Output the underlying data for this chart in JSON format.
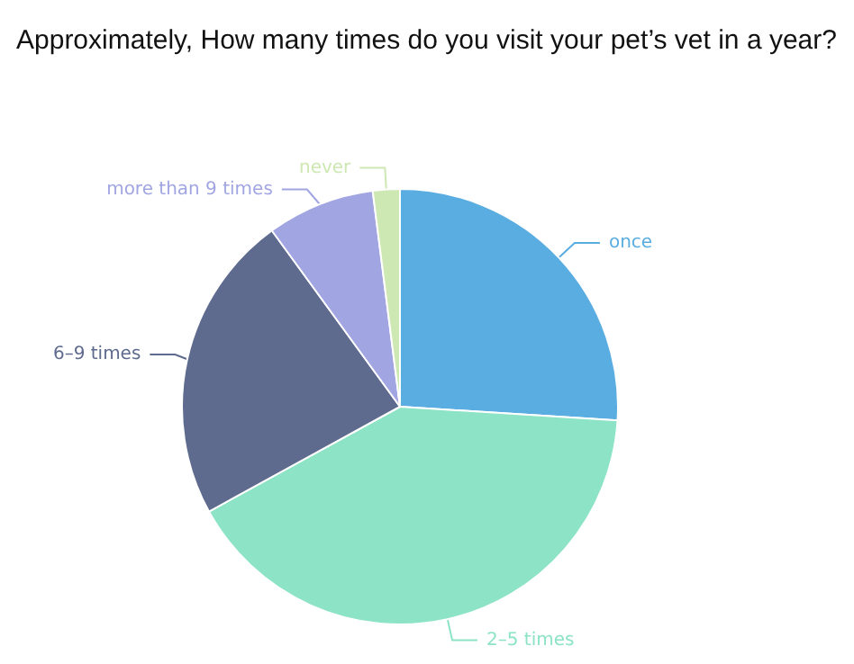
{
  "chart_data": {
    "type": "pie",
    "title": "Approximately, How many times do you visit your pet’s vet in a year?",
    "categories": [
      "once",
      "2–5 times",
      "6–9 times",
      "more than 9 times",
      "never"
    ],
    "values": [
      26,
      41,
      23,
      8,
      2
    ],
    "colors": [
      "#5aade0",
      "#8ce3c6",
      "#5e6a8e",
      "#a1a6e2",
      "#cde8b3"
    ]
  }
}
